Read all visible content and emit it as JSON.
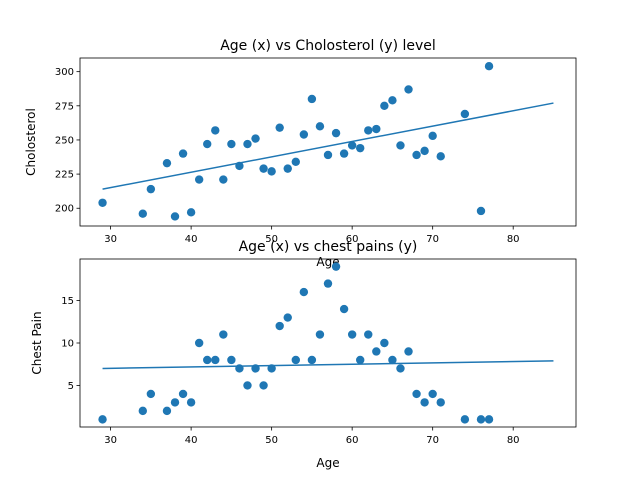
{
  "chart_data": [
    {
      "type": "scatter",
      "title": "Age (x) vs Cholosterol (y) level",
      "xlabel": "Age",
      "ylabel": "Cholosterol",
      "xlim": [
        26.2,
        87.8
      ],
      "ylim": [
        187,
        310
      ],
      "xticks": [
        30,
        40,
        50,
        60,
        70,
        80
      ],
      "yticks": [
        200,
        225,
        250,
        275,
        300
      ],
      "grid": false,
      "color": "#1f77b4",
      "points": [
        [
          29,
          204
        ],
        [
          34,
          196
        ],
        [
          35,
          214
        ],
        [
          37,
          233
        ],
        [
          38,
          194
        ],
        [
          39,
          240
        ],
        [
          40,
          197
        ],
        [
          41,
          221
        ],
        [
          42,
          247
        ],
        [
          43,
          257
        ],
        [
          44,
          221
        ],
        [
          45,
          247
        ],
        [
          46,
          231
        ],
        [
          47,
          247
        ],
        [
          48,
          251
        ],
        [
          49,
          229
        ],
        [
          50,
          227
        ],
        [
          51,
          259
        ],
        [
          52,
          229
        ],
        [
          53,
          234
        ],
        [
          54,
          254
        ],
        [
          55,
          280
        ],
        [
          56,
          260
        ],
        [
          57,
          239
        ],
        [
          58,
          255
        ],
        [
          59,
          240
        ],
        [
          60,
          246
        ],
        [
          61,
          244
        ],
        [
          62,
          257
        ],
        [
          63,
          258
        ],
        [
          64,
          275
        ],
        [
          65,
          279
        ],
        [
          66,
          246
        ],
        [
          67,
          287
        ],
        [
          68,
          239
        ],
        [
          69,
          242
        ],
        [
          70,
          253
        ],
        [
          71,
          238
        ],
        [
          74,
          269
        ],
        [
          76,
          198
        ],
        [
          77,
          304
        ]
      ],
      "fit_line": {
        "x": [
          29,
          85
        ],
        "y": [
          214,
          277
        ]
      }
    },
    {
      "type": "scatter",
      "title": "Age (x) vs chest pains (y)",
      "xlabel": "Age",
      "ylabel": "Chest Pain",
      "xlim": [
        26.2,
        87.8
      ],
      "ylim": [
        0.1,
        19.9
      ],
      "xticks": [
        30,
        40,
        50,
        60,
        70,
        80
      ],
      "yticks": [
        5,
        10,
        15
      ],
      "grid": false,
      "color": "#1f77b4",
      "points": [
        [
          29,
          1
        ],
        [
          34,
          2
        ],
        [
          35,
          4
        ],
        [
          37,
          2
        ],
        [
          38,
          3
        ],
        [
          39,
          4
        ],
        [
          40,
          3
        ],
        [
          41,
          10
        ],
        [
          42,
          8
        ],
        [
          43,
          8
        ],
        [
          44,
          11
        ],
        [
          45,
          8
        ],
        [
          46,
          7
        ],
        [
          47,
          5
        ],
        [
          48,
          7
        ],
        [
          49,
          5
        ],
        [
          50,
          7
        ],
        [
          51,
          12
        ],
        [
          52,
          13
        ],
        [
          53,
          8
        ],
        [
          54,
          16
        ],
        [
          55,
          8
        ],
        [
          56,
          11
        ],
        [
          57,
          17
        ],
        [
          58,
          19
        ],
        [
          59,
          14
        ],
        [
          60,
          11
        ],
        [
          61,
          8
        ],
        [
          62,
          11
        ],
        [
          63,
          9
        ],
        [
          64,
          10
        ],
        [
          65,
          8
        ],
        [
          66,
          7
        ],
        [
          67,
          9
        ],
        [
          68,
          4
        ],
        [
          69,
          3
        ],
        [
          70,
          4
        ],
        [
          71,
          3
        ],
        [
          74,
          1
        ],
        [
          76,
          1
        ],
        [
          77,
          1
        ]
      ],
      "fit_line": {
        "x": [
          29,
          85
        ],
        "y": [
          7.0,
          7.9
        ]
      }
    }
  ]
}
